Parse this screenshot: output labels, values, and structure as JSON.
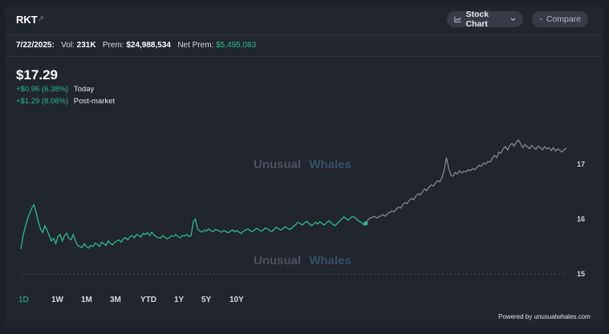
{
  "header": {
    "ticker": "RKT",
    "stock_chart_label": "Stock Chart",
    "compare_label": "Compare"
  },
  "stats": {
    "date": "7/22/2025:",
    "vol_label": "Vol:",
    "vol_value": "231K",
    "prem_label": "Prem:",
    "prem_value": "$24,988,534",
    "net_prem_label": "Net Prem:",
    "net_prem_value": "$5,495,083"
  },
  "quote": {
    "price": "$17.29",
    "today_change": "+$0.96 (6.38%)",
    "today_label": "Today",
    "post_change": "+$1.29 (8.06%)",
    "post_label": "Post-market"
  },
  "ranges": [
    "1D",
    "1W",
    "1M",
    "3M",
    "YTD",
    "1Y",
    "5Y",
    "10Y"
  ],
  "active_range": "1D",
  "watermark": {
    "part1": "Unusual",
    "part2": "Whales"
  },
  "footer": "Powered by unusualwhales.com",
  "colors": {
    "regular_session": "#2dbd85",
    "post_session": "#8a8f9a",
    "watermark1": "#4a5260",
    "watermark2": "#38506a"
  },
  "chart_data": {
    "type": "line",
    "y_ticks": [
      "17",
      "16",
      "15"
    ],
    "ylim": [
      15.0,
      17.55
    ],
    "reference_line": 15.0,
    "series": [
      {
        "session": "regular",
        "values": [
          15.45,
          15.7,
          15.85,
          16.0,
          16.1,
          16.2,
          16.26,
          16.12,
          15.95,
          15.82,
          15.75,
          15.88,
          15.8,
          15.7,
          15.6,
          15.65,
          15.55,
          15.68,
          15.72,
          15.6,
          15.7,
          15.74,
          15.65,
          15.62,
          15.72,
          15.6,
          15.52,
          15.5,
          15.48,
          15.55,
          15.5,
          15.47,
          15.52,
          15.5,
          15.56,
          15.54,
          15.5,
          15.58,
          15.55,
          15.52,
          15.6,
          15.56,
          15.53,
          15.58,
          15.6,
          15.62,
          15.58,
          15.64,
          15.66,
          15.62,
          15.68,
          15.7,
          15.66,
          15.72,
          15.7,
          15.67,
          15.74,
          15.72,
          15.75,
          15.7,
          15.76,
          15.71,
          15.68,
          15.66,
          15.65,
          15.7,
          15.67,
          15.64,
          15.66,
          15.7,
          15.68,
          15.72,
          15.68,
          15.66,
          15.7,
          15.69,
          15.72,
          15.68,
          15.7,
          15.95,
          16.0,
          15.82,
          15.78,
          15.76,
          15.8,
          15.78,
          15.82,
          15.79,
          15.77,
          15.81,
          15.8,
          15.78,
          15.76,
          15.79,
          15.77,
          15.75,
          15.78,
          15.8,
          15.77,
          15.79,
          15.76,
          15.74,
          15.78,
          15.8,
          15.82,
          15.79,
          15.77,
          15.8,
          15.83,
          15.81,
          15.78,
          15.8,
          15.84,
          15.82,
          15.79,
          15.77,
          15.81,
          15.85,
          15.83,
          15.8,
          15.82,
          15.86,
          15.84,
          15.81,
          15.83,
          15.87,
          15.9,
          15.94,
          15.92,
          15.89,
          15.93,
          15.96,
          15.92,
          15.88,
          15.9,
          15.94,
          15.91,
          15.95,
          15.92,
          15.89,
          15.93,
          15.97,
          15.94,
          15.9,
          15.88,
          15.92,
          15.96,
          16.0,
          16.04,
          16.01,
          15.98,
          16.02,
          16.05,
          16.03,
          15.99,
          15.96,
          15.94,
          15.9,
          15.92
        ]
      },
      {
        "session": "post-market",
        "values": [
          15.92,
          15.98,
          16.02,
          16.03,
          16.05,
          16.02,
          16.04,
          16.06,
          16.08,
          16.05,
          16.1,
          16.12,
          16.15,
          16.13,
          16.18,
          16.22,
          16.2,
          16.26,
          16.3,
          16.28,
          16.34,
          16.38,
          16.35,
          16.42,
          16.46,
          16.44,
          16.5,
          16.55,
          16.52,
          16.58,
          16.62,
          16.6,
          16.66,
          16.7,
          16.68,
          16.76,
          16.9,
          17.12,
          16.94,
          16.8,
          16.78,
          16.85,
          16.82,
          16.88,
          16.84,
          16.87,
          16.86,
          16.9,
          16.88,
          16.92,
          16.9,
          16.94,
          16.98,
          16.96,
          17.02,
          17.0,
          17.05,
          17.04,
          17.1,
          17.16,
          17.12,
          17.22,
          17.2,
          17.28,
          17.32,
          17.26,
          17.34,
          17.38,
          17.33,
          17.4,
          17.44,
          17.37,
          17.3,
          17.36,
          17.32,
          17.28,
          17.34,
          17.3,
          17.27,
          17.33,
          17.3,
          17.26,
          17.32,
          17.28,
          17.3,
          17.25,
          17.3,
          17.24,
          17.28,
          17.25,
          17.22,
          17.27,
          17.29
        ]
      }
    ]
  }
}
